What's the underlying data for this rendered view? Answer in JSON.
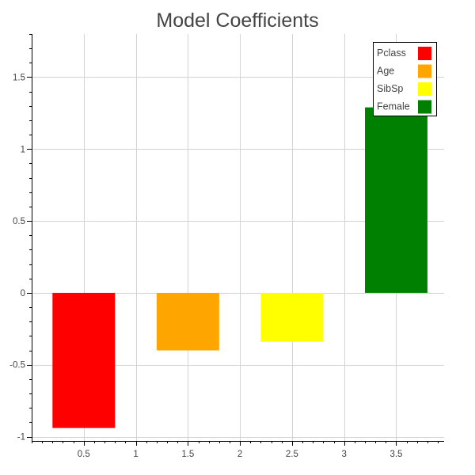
{
  "chart_data": {
    "type": "bar",
    "title": "Model Coefficients",
    "xlabel": "",
    "ylabel": "",
    "xlim": [
      0.0,
      3.96
    ],
    "ylim": [
      -1.03,
      1.8
    ],
    "x_ticks": [
      0.5,
      1,
      1.5,
      2,
      2.5,
      3,
      3.5
    ],
    "x_tick_labels": [
      "0.5",
      "1",
      "1.5",
      "2",
      "2.5",
      "3",
      "3.5"
    ],
    "y_ticks": [
      -1,
      -0.5,
      0,
      0.5,
      1,
      1.5
    ],
    "y_tick_labels": [
      "-1",
      "-0.5",
      "0",
      "0.5",
      "1",
      "1.5"
    ],
    "grid": true,
    "legend_position": "top-right",
    "series": [
      {
        "name": "Pclass",
        "x": 0.5,
        "value": -0.94,
        "width": 0.6,
        "color": "#ff0000"
      },
      {
        "name": "Age",
        "x": 1.5,
        "value": -0.4,
        "width": 0.6,
        "color": "#ffa500"
      },
      {
        "name": "SibSp",
        "x": 2.5,
        "value": -0.34,
        "width": 0.6,
        "color": "#ffff00"
      },
      {
        "name": "Female",
        "x": 3.5,
        "value": 1.29,
        "width": 0.6,
        "color": "#008000"
      }
    ]
  }
}
